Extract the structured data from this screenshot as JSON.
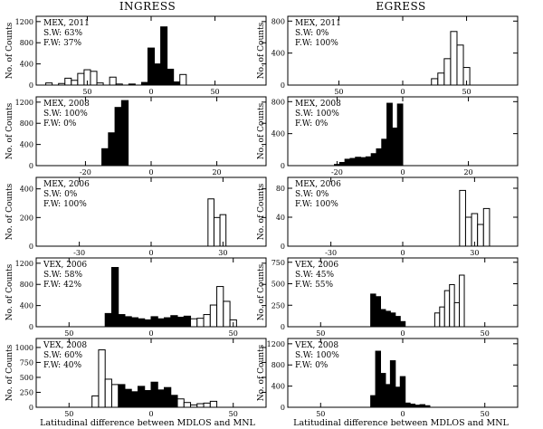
{
  "figure": {
    "column_titles": [
      "INGRESS",
      "EGRESS"
    ],
    "xlabel": "Latitudinal difference between MDLOS and MNL",
    "ylabel": "No. of Counts"
  },
  "colors": {
    "southward": "#000000",
    "northward": "#ffffff",
    "stroke": "#000000"
  },
  "chart_data": [
    {
      "id": "ingress-mex-2011",
      "type": "bar",
      "column": "INGRESS",
      "row": 0,
      "labels": [
        "MEX, 2011",
        "S.W: 63%",
        "F.W: 37%"
      ],
      "xlim": [
        -90,
        90
      ],
      "xticks": [
        -50,
        0,
        50
      ],
      "xticklabels": [
        "50",
        "0",
        "50"
      ],
      "ylim": [
        0,
        1300
      ],
      "yticks": [
        0,
        400,
        800,
        1200
      ],
      "binwidth": 5,
      "series": [
        {
          "name": "southward",
          "fill": "black",
          "x": [
            -15,
            -5,
            0,
            5,
            10,
            15,
            20
          ],
          "values": [
            20,
            50,
            700,
            400,
            1100,
            300,
            60
          ]
        },
        {
          "name": "northward",
          "fill": "white",
          "x": [
            -80,
            -70,
            -65,
            -60,
            -55,
            -50,
            -45,
            -40,
            -30,
            -25,
            25
          ],
          "values": [
            40,
            30,
            130,
            90,
            220,
            290,
            260,
            40,
            150,
            20,
            200
          ]
        }
      ]
    },
    {
      "id": "egress-mex-2011",
      "type": "bar",
      "column": "EGRESS",
      "row": 0,
      "labels": [
        "MEX, 2011",
        "S.W: 0%",
        "F.W: 100%"
      ],
      "xlim": [
        -90,
        90
      ],
      "xticks": [
        -50,
        0,
        50
      ],
      "xticklabels": [
        "50",
        "0",
        "50"
      ],
      "ylim": [
        0,
        860
      ],
      "yticks": [
        0,
        400,
        800
      ],
      "binwidth": 5,
      "series": [
        {
          "name": "northward",
          "fill": "white",
          "x": [
            25,
            30,
            35,
            40,
            45,
            50
          ],
          "values": [
            80,
            150,
            330,
            670,
            500,
            220
          ]
        }
      ]
    },
    {
      "id": "ingress-mex-2008",
      "type": "bar",
      "column": "INGRESS",
      "row": 1,
      "labels": [
        "MEX, 2008",
        "S.W: 100%",
        "F.W: 0%"
      ],
      "xlim": [
        -35,
        35
      ],
      "xticks": [
        -20,
        0,
        20
      ],
      "xticklabels": [
        "-20",
        "0",
        "20"
      ],
      "ylim": [
        0,
        1300
      ],
      "yticks": [
        0,
        400,
        800,
        1200
      ],
      "binwidth": 2,
      "series": [
        {
          "name": "southward",
          "fill": "black",
          "x": [
            -14,
            -12,
            -10,
            -8
          ],
          "values": [
            320,
            620,
            1100,
            1230
          ]
        }
      ]
    },
    {
      "id": "egress-mex-2008",
      "type": "bar",
      "column": "EGRESS",
      "row": 1,
      "labels": [
        "MEX, 2008",
        "S.W: 100%",
        "F.W: 0%"
      ],
      "xlim": [
        -35,
        35
      ],
      "xticks": [
        -20,
        0,
        20
      ],
      "xticklabels": [
        "-20",
        "0",
        "20"
      ],
      "ylim": [
        0,
        860
      ],
      "yticks": [
        0,
        400,
        800
      ],
      "binwidth": 1.6,
      "series": [
        {
          "name": "southward",
          "fill": "black",
          "x": [
            -20,
            -18.4,
            -16.8,
            -15.2,
            -13.6,
            -12,
            -10.4,
            -8.8,
            -7.2,
            -5.6,
            -4,
            -2.4,
            -0.8
          ],
          "values": [
            15,
            40,
            80,
            90,
            105,
            100,
            110,
            150,
            210,
            330,
            780,
            470,
            770
          ]
        }
      ]
    },
    {
      "id": "ingress-mex-2006",
      "type": "bar",
      "column": "INGRESS",
      "row": 2,
      "labels": [
        "MEX, 2006",
        "S.W: 0%",
        "F.W: 100%"
      ],
      "xlim": [
        -48,
        48
      ],
      "xticks": [
        -30,
        0,
        30
      ],
      "xticklabels": [
        "-30",
        "0",
        "30"
      ],
      "ylim": [
        0,
        480
      ],
      "yticks": [
        0,
        200,
        400
      ],
      "binwidth": 2.5,
      "series": [
        {
          "name": "northward",
          "fill": "white",
          "x": [
            25,
            27.5,
            30
          ],
          "values": [
            330,
            200,
            220
          ]
        }
      ]
    },
    {
      "id": "egress-mex-2006",
      "type": "bar",
      "column": "EGRESS",
      "row": 2,
      "labels": [
        "MEX, 2006",
        "S.W: 0%",
        "F.W: 100%"
      ],
      "xlim": [
        -48,
        48
      ],
      "xticks": [
        -30,
        0,
        30
      ],
      "xticklabels": [
        "-30",
        "0",
        "30"
      ],
      "ylim": [
        0,
        95
      ],
      "yticks": [
        0,
        40,
        80
      ],
      "binwidth": 2.5,
      "series": [
        {
          "name": "northward",
          "fill": "white",
          "x": [
            25,
            27.5,
            30,
            32.5,
            35
          ],
          "values": [
            77,
            40,
            45,
            30,
            52
          ]
        }
      ]
    },
    {
      "id": "ingress-vex-2006",
      "type": "bar",
      "column": "INGRESS",
      "row": 3,
      "labels": [
        "VEX, 2006",
        "S.W: 58%",
        "F.W: 42%"
      ],
      "xlim": [
        -70,
        70
      ],
      "xticks": [
        -50,
        0,
        50
      ],
      "xticklabels": [
        "50",
        "0",
        "50"
      ],
      "ylim": [
        0,
        1300
      ],
      "yticks": [
        0,
        400,
        800,
        1200
      ],
      "binwidth": 4,
      "series": [
        {
          "name": "southward",
          "fill": "black",
          "x": [
            -26,
            -22,
            -18,
            -14,
            -10,
            -6,
            -2,
            2,
            6,
            10,
            14,
            18,
            22
          ],
          "values": [
            250,
            1120,
            230,
            190,
            170,
            150,
            130,
            190,
            150,
            170,
            210,
            180,
            200
          ]
        },
        {
          "name": "northward",
          "fill": "white",
          "x": [
            26,
            30,
            34,
            38,
            42,
            46,
            50
          ],
          "values": [
            150,
            160,
            230,
            410,
            760,
            480,
            130
          ]
        }
      ]
    },
    {
      "id": "egress-vex-2006",
      "type": "bar",
      "column": "EGRESS",
      "row": 3,
      "labels": [
        "VEX, 2006",
        "S.W: 45%",
        "F.W: 55%"
      ],
      "xlim": [
        -70,
        70
      ],
      "xticks": [
        -50,
        0,
        50
      ],
      "xticklabels": [
        "50",
        "0",
        "50"
      ],
      "ylim": [
        0,
        800
      ],
      "yticks": [
        0,
        250,
        500,
        750
      ],
      "binwidth": 3,
      "series": [
        {
          "name": "southward",
          "fill": "black",
          "x": [
            -18,
            -15,
            -12,
            -9,
            -6,
            -3,
            0
          ],
          "values": [
            380,
            350,
            200,
            180,
            160,
            120,
            60
          ]
        },
        {
          "name": "northward",
          "fill": "white",
          "x": [
            21,
            24,
            27,
            30,
            33,
            36
          ],
          "values": [
            160,
            230,
            420,
            490,
            280,
            600
          ]
        }
      ]
    },
    {
      "id": "ingress-vex-2008",
      "type": "bar",
      "column": "INGRESS",
      "row": 4,
      "labels": [
        "VEX, 2008",
        "S.W: 60%",
        "F.W: 40%"
      ],
      "xlim": [
        -70,
        70
      ],
      "xticks": [
        -50,
        0,
        50
      ],
      "xticklabels": [
        "50",
        "0",
        "50"
      ],
      "ylim": [
        0,
        1150
      ],
      "yticks": [
        0,
        250,
        500,
        750,
        1000
      ],
      "binwidth": 4,
      "series": [
        {
          "name": "southward",
          "fill": "black",
          "x": [
            -18,
            -14,
            -10,
            -6,
            -2,
            2,
            6,
            10,
            14
          ],
          "values": [
            380,
            300,
            260,
            350,
            280,
            420,
            290,
            330,
            200
          ]
        },
        {
          "name": "northward",
          "fill": "white",
          "x": [
            -34,
            -30,
            -26,
            -22,
            18,
            22,
            26,
            30,
            34,
            38
          ],
          "values": [
            190,
            960,
            470,
            380,
            140,
            80,
            40,
            60,
            70,
            100
          ]
        }
      ]
    },
    {
      "id": "egress-vex-2008",
      "type": "bar",
      "column": "EGRESS",
      "row": 4,
      "labels": [
        "VEX, 2008",
        "S.W: 100%",
        "F.W: 0%"
      ],
      "xlim": [
        -70,
        70
      ],
      "xticks": [
        -50,
        0,
        50
      ],
      "xticklabels": [
        "50",
        "0",
        "50"
      ],
      "ylim": [
        0,
        1300
      ],
      "yticks": [
        0,
        400,
        800,
        1200
      ],
      "binwidth": 3,
      "series": [
        {
          "name": "southward",
          "fill": "black",
          "x": [
            -18,
            -15,
            -12,
            -9,
            -6,
            -3,
            0,
            3,
            6,
            9,
            12,
            15
          ],
          "values": [
            220,
            1060,
            640,
            430,
            880,
            380,
            580,
            80,
            60,
            40,
            50,
            30
          ]
        }
      ]
    }
  ]
}
